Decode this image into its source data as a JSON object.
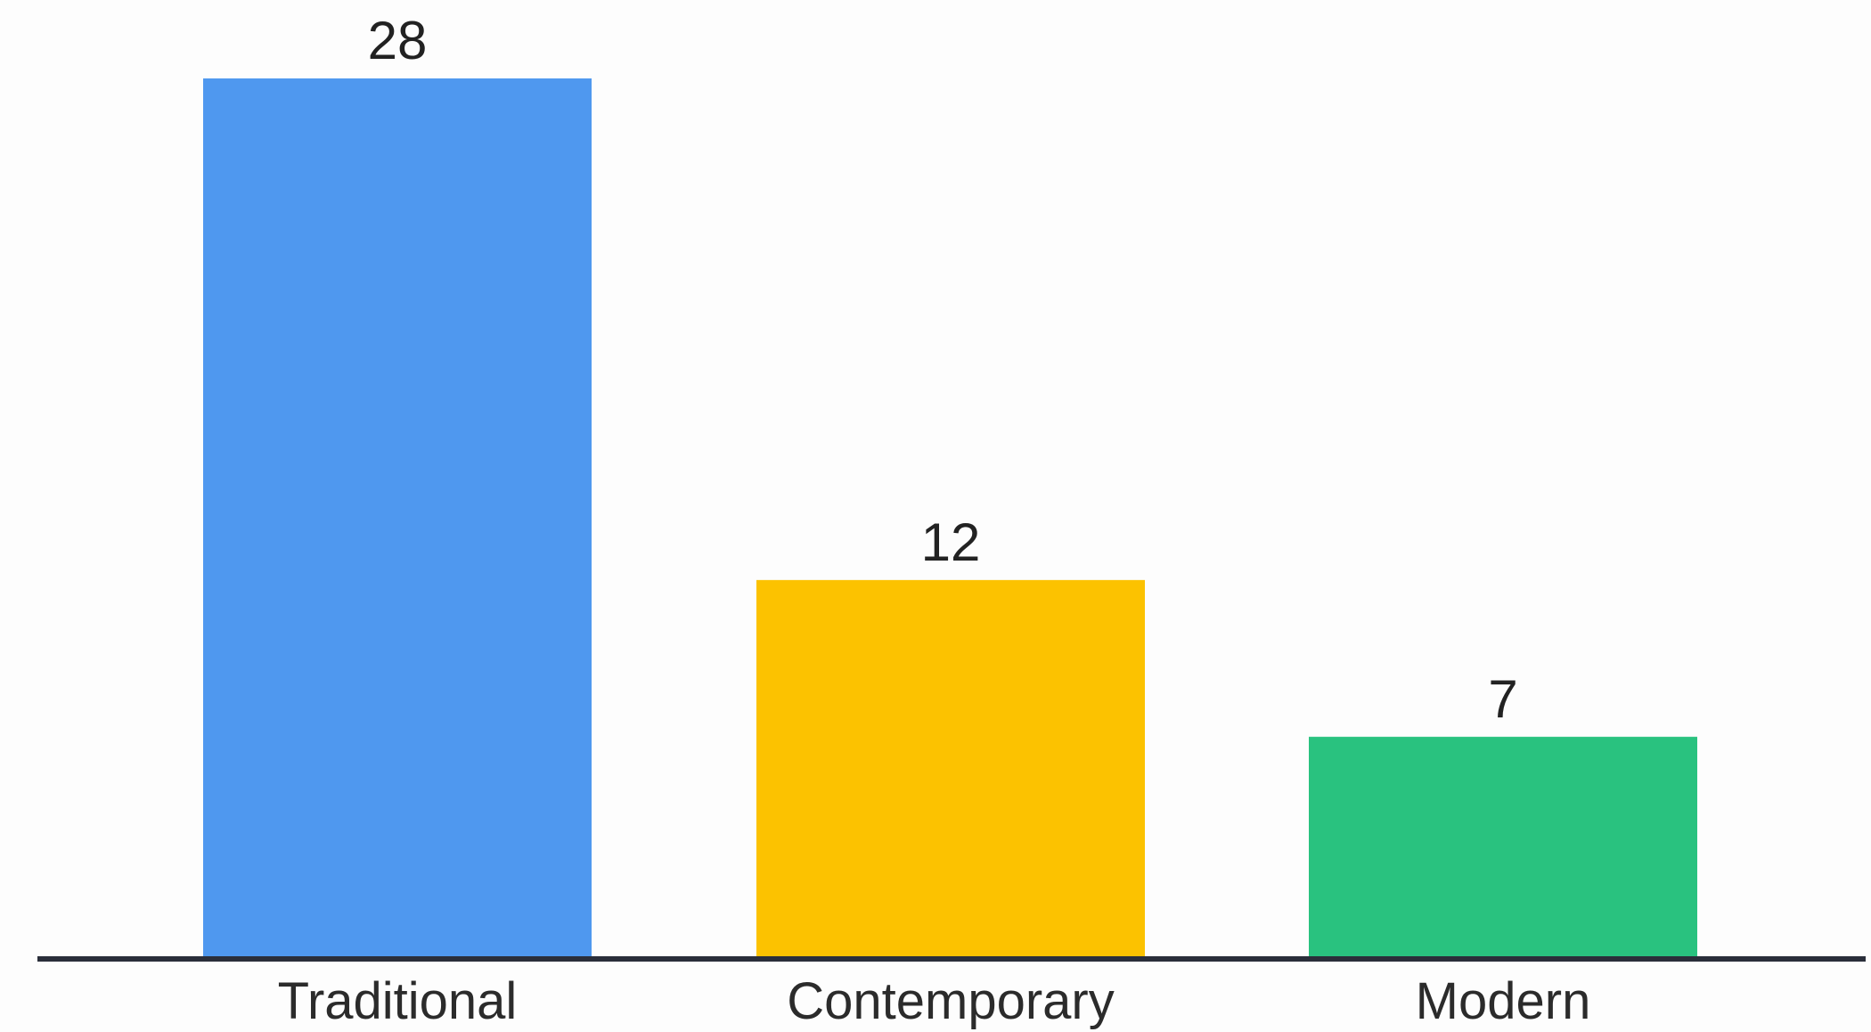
{
  "chart_data": {
    "type": "bar",
    "categories": [
      "Traditional",
      "Contemporary",
      "Modern"
    ],
    "values": [
      28,
      12,
      7
    ],
    "data_labels": [
      "28",
      "12",
      "7"
    ],
    "colors": [
      "#4f98ef",
      "#fcc200",
      "#29c27f"
    ],
    "axis_color": "#2a2e3a",
    "ylim": [
      0,
      28
    ],
    "grid": false,
    "legend": "none",
    "title": "",
    "xlabel": "",
    "ylabel": ""
  }
}
